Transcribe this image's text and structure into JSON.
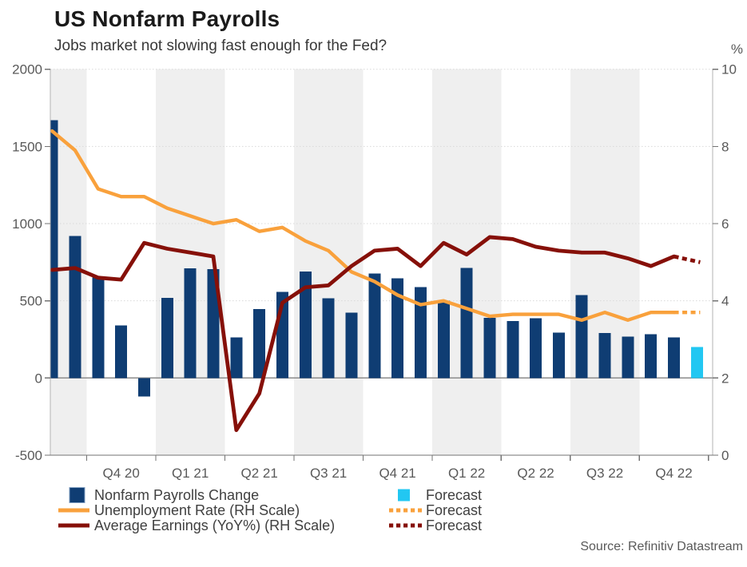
{
  "title": "US Nonfarm Payrolls",
  "subtitle": "Jobs market not slowing fast enough for the Fed?",
  "source_note": "Source: Refinitiv Datastream",
  "colors": {
    "bar": "#0f3d73",
    "bar_forecast": "#22c7f2",
    "bar_legend_border": "#7e9cc0",
    "unemployment": "#f9a13c",
    "earnings": "#861009",
    "band": "#efefef",
    "grid": "#d9d9d9",
    "zero_line": "#8c8c8c",
    "axis_line": "#b3b3b3",
    "axis_bottom": "#737373",
    "tick": "#737373",
    "axis_text": "#595959",
    "legend_text": "#404040"
  },
  "legend": {
    "left_column": [
      {
        "label": "Nonfarm Payrolls Change",
        "swatch": "square",
        "color_key": "bar"
      },
      {
        "label": "Unemployment Rate (RH Scale)",
        "swatch": "line",
        "color_key": "unemployment"
      },
      {
        "label": "Average Earnings (YoY%) (RH Scale)",
        "swatch": "line",
        "color_key": "earnings"
      }
    ],
    "right_column": [
      {
        "label": "Forecast",
        "swatch": "square",
        "color_key": "bar_forecast"
      },
      {
        "label": "Forecast",
        "swatch": "dashed-line",
        "color_key": "unemployment"
      },
      {
        "label": "Forecast",
        "swatch": "dashed-line",
        "color_key": "earnings"
      }
    ]
  },
  "chart_data": {
    "type": "bar+line",
    "title": "US Nonfarm Payrolls",
    "subtitle": "Jobs market not slowing fast enough for the Fed?",
    "grid": "horizontal-dotted",
    "quarter_shading": "alternating",
    "x_axis": {
      "quarter_labels": [
        "Q4 20",
        "Q1 21",
        "Q2 21",
        "Q3 21",
        "Q4 21",
        "Q1 22",
        "Q2 22",
        "Q3 22",
        "Q4 22"
      ],
      "months_before_first_label_quarter": 2,
      "months_total": 29
    },
    "left_axis": {
      "ticks": [
        -500,
        0,
        500,
        1000,
        1500,
        2000
      ],
      "range": [
        -500,
        2000
      ]
    },
    "right_axis": {
      "label": "%",
      "ticks": [
        0,
        2,
        4,
        6,
        8,
        10
      ],
      "range": [
        0,
        10
      ]
    },
    "series": [
      {
        "name": "Nonfarm Payrolls Change",
        "type": "bar",
        "axis": "left",
        "unit": "thousands",
        "last_is_forecast": true,
        "values": [
          1670,
          920,
          650,
          340,
          -120,
          520,
          710,
          705,
          263,
          447,
          557,
          689,
          517,
          424,
          677,
          647,
          588,
          500,
          714,
          390,
          368,
          386,
          293,
          537,
          292,
          269,
          284,
          263,
          200
        ]
      },
      {
        "name": "Unemployment Rate (RH Scale)",
        "type": "line",
        "axis": "right",
        "unit": "%",
        "last_is_forecast": true,
        "values": [
          8.4,
          7.9,
          6.9,
          6.7,
          6.7,
          6.4,
          6.2,
          6.0,
          6.1,
          5.8,
          5.9,
          5.55,
          5.3,
          4.75,
          4.5,
          4.15,
          3.9,
          4.0,
          3.8,
          3.6,
          3.65,
          3.65,
          3.65,
          3.5,
          3.7,
          3.5,
          3.7,
          3.7,
          3.7
        ]
      },
      {
        "name": "Average Earnings (YoY%) (RH Scale)",
        "type": "line",
        "axis": "right",
        "unit": "%",
        "last_is_forecast": true,
        "values": [
          4.8,
          4.85,
          4.6,
          4.55,
          5.5,
          5.35,
          5.25,
          5.15,
          0.65,
          1.6,
          3.95,
          4.35,
          4.4,
          4.9,
          5.3,
          5.35,
          4.9,
          5.5,
          5.2,
          5.65,
          5.6,
          5.4,
          5.3,
          5.25,
          5.25,
          5.1,
          4.9,
          5.15,
          5.0
        ]
      }
    ]
  }
}
